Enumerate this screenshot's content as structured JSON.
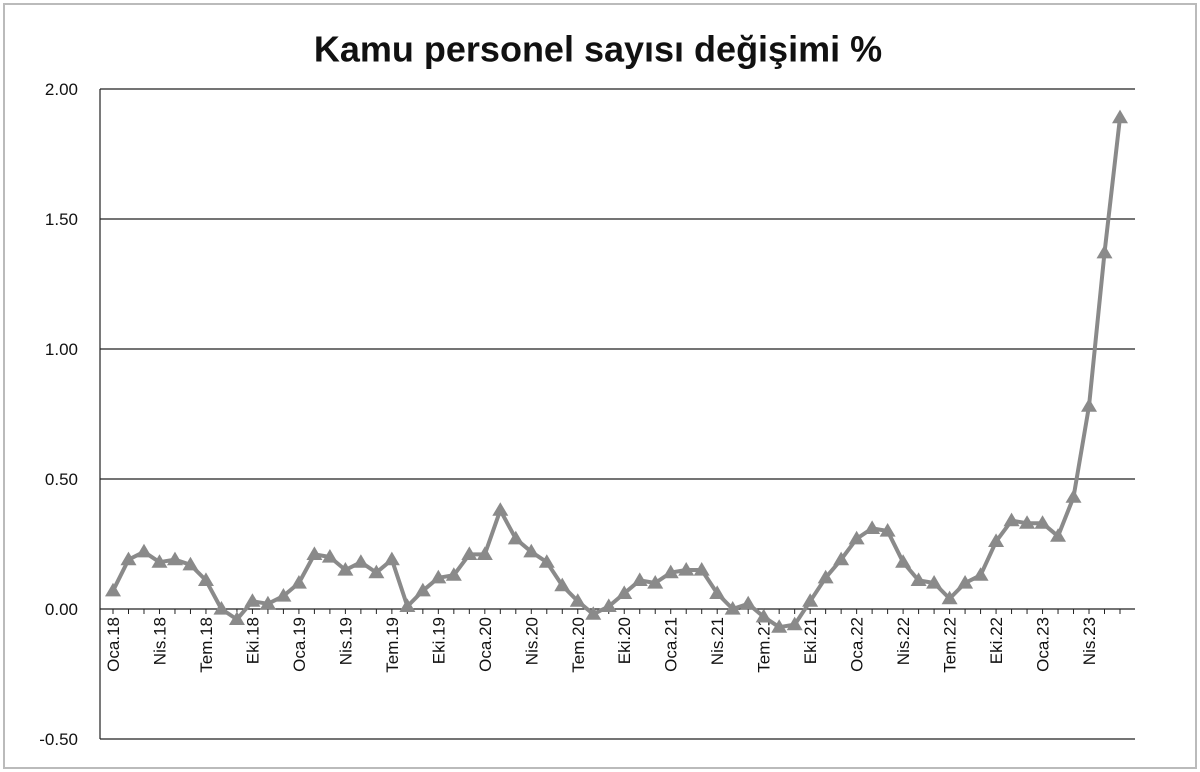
{
  "chart_data": {
    "type": "line",
    "title": "Kamu personel sayısı değişimi %",
    "categories": [
      "Oca.18",
      null,
      null,
      "Nis.18",
      null,
      null,
      "Tem.18",
      null,
      null,
      "Eki.18",
      null,
      null,
      "Oca.19",
      null,
      null,
      "Nis.19",
      null,
      null,
      "Tem.19",
      null,
      null,
      "Eki.19",
      null,
      null,
      "Oca.20",
      null,
      null,
      "Nis.20",
      null,
      null,
      "Tem.20",
      null,
      null,
      "Eki.20",
      null,
      null,
      "Oca.21",
      null,
      null,
      "Nis.21",
      null,
      null,
      "Tem.21",
      null,
      null,
      "Eki.21",
      null,
      null,
      "Oca.22",
      null,
      null,
      "Nis.22",
      null,
      null,
      "Tem.22",
      null,
      null,
      "Eki.22",
      null,
      null,
      "Oca.23",
      null,
      null,
      "Nis.23",
      null,
      null
    ],
    "values": [
      0.07,
      0.19,
      0.22,
      0.18,
      0.19,
      0.17,
      0.11,
      0.0,
      -0.04,
      0.03,
      0.02,
      0.05,
      0.1,
      0.21,
      0.2,
      0.15,
      0.18,
      0.14,
      0.19,
      0.01,
      0.07,
      0.12,
      0.13,
      0.21,
      0.21,
      0.38,
      0.27,
      0.22,
      0.18,
      0.09,
      0.03,
      -0.02,
      0.01,
      0.06,
      0.11,
      0.1,
      0.14,
      0.15,
      0.15,
      0.06,
      0.0,
      0.02,
      -0.03,
      -0.07,
      -0.06,
      0.03,
      0.12,
      0.19,
      0.27,
      0.31,
      0.3,
      0.18,
      0.11,
      0.1,
      0.04,
      0.1,
      0.13,
      0.26,
      0.34,
      0.33,
      0.33,
      0.28,
      0.43,
      0.78,
      1.37,
      1.89
    ],
    "color": "#8a8a8a",
    "ylim": [
      -0.5,
      2
    ],
    "yticks": [
      {
        "value": -0.5,
        "label": "-0.50"
      },
      {
        "value": 0,
        "label": "0.00"
      },
      {
        "value": 0.5,
        "label": "0.50"
      },
      {
        "value": 1,
        "label": "1.00"
      },
      {
        "value": 1.5,
        "label": "1.50"
      },
      {
        "value": 2,
        "label": "2.00"
      }
    ],
    "grid": true,
    "marker": "triangle"
  }
}
